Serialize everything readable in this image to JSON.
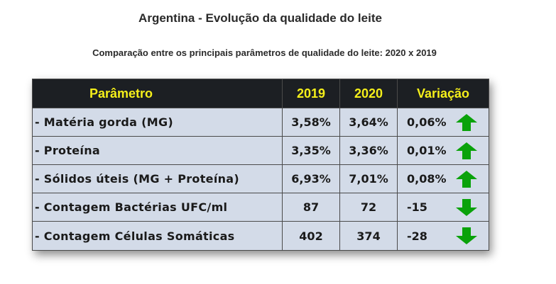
{
  "title": "Argentina - Evolução da qualidade do leite",
  "subtitle": "Comparação entre os principais parâmetros de qualidade do leite: 2020 x 2019",
  "table": {
    "headers": [
      "Parâmetro",
      "2019",
      "2020",
      "Variação"
    ],
    "header_color": "#f5ef1a",
    "rows": [
      {
        "param": "- Matéria gorda (MG)",
        "y2019": "3,58%",
        "y2020": "3,64%",
        "variation": "0,06%",
        "trend": "up-arrow-icon"
      },
      {
        "param": "- Proteína",
        "y2019": "3,35%",
        "y2020": "3,36%",
        "variation": "0,01%",
        "trend": "up-arrow-icon"
      },
      {
        "param": "- Sólidos úteis (MG + Proteína)",
        "y2019": "6,93%",
        "y2020": "7,01%",
        "variation": "0,08%",
        "trend": "up-arrow-icon"
      },
      {
        "param": "- Contagem Bactérias UFC/ml",
        "y2019": "87",
        "y2020": "72",
        "variation": "-15",
        "trend": "down-arrow-icon"
      },
      {
        "param": "- Contagem Células Somáticas",
        "y2019": "402",
        "y2020": "374",
        "variation": "-28",
        "trend": "down-arrow-icon"
      }
    ],
    "arrow_color": "#0aa20a"
  }
}
